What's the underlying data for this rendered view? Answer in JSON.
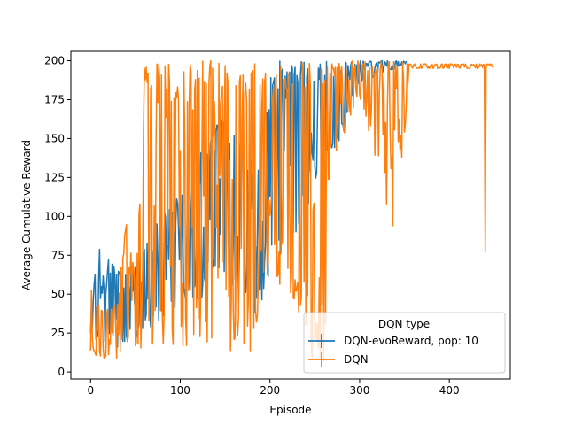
{
  "chart_data": {
    "type": "line",
    "xlabel": "Episode",
    "ylabel": "Average Cumulative Reward",
    "xlim": [
      -22,
      468
    ],
    "ylim": [
      -4.5,
      206
    ],
    "xticks": [
      0,
      100,
      200,
      300,
      400
    ],
    "yticks": [
      0,
      25,
      50,
      75,
      100,
      125,
      150,
      175,
      200
    ],
    "legend": {
      "title": "DQN type",
      "position": "lower-right"
    },
    "series": [
      {
        "name": "DQN-evoReward, pop: 10",
        "color": "#1f77b4",
        "x_end": 352,
        "envelope": [
          {
            "x": 0,
            "lo": 15,
            "hi": 35
          },
          {
            "x": 5,
            "lo": 18,
            "hi": 70
          },
          {
            "x": 8,
            "lo": 20,
            "hi": 105
          },
          {
            "x": 12,
            "lo": 15,
            "hi": 60
          },
          {
            "x": 20,
            "lo": 20,
            "hi": 75
          },
          {
            "x": 30,
            "lo": 15,
            "hi": 65
          },
          {
            "x": 40,
            "lo": 20,
            "hi": 70
          },
          {
            "x": 50,
            "lo": 22,
            "hi": 75
          },
          {
            "x": 60,
            "lo": 25,
            "hi": 80
          },
          {
            "x": 70,
            "lo": 30,
            "hi": 90
          },
          {
            "x": 80,
            "lo": 30,
            "hi": 105
          },
          {
            "x": 90,
            "lo": 35,
            "hi": 110
          },
          {
            "x": 100,
            "lo": 40,
            "hi": 115
          },
          {
            "x": 110,
            "lo": 45,
            "hi": 120
          },
          {
            "x": 120,
            "lo": 45,
            "hi": 140
          },
          {
            "x": 130,
            "lo": 50,
            "hi": 150
          },
          {
            "x": 140,
            "lo": 55,
            "hi": 160
          },
          {
            "x": 150,
            "lo": 60,
            "hi": 165
          },
          {
            "x": 160,
            "lo": 50,
            "hi": 160
          },
          {
            "x": 170,
            "lo": 40,
            "hi": 150
          },
          {
            "x": 180,
            "lo": 30,
            "hi": 140
          },
          {
            "x": 190,
            "lo": 40,
            "hi": 160
          },
          {
            "x": 200,
            "lo": 60,
            "hi": 190
          },
          {
            "x": 210,
            "lo": 70,
            "hi": 200
          },
          {
            "x": 220,
            "lo": 75,
            "hi": 200
          },
          {
            "x": 230,
            "lo": 90,
            "hi": 200
          },
          {
            "x": 240,
            "lo": 100,
            "hi": 200
          },
          {
            "x": 250,
            "lo": 110,
            "hi": 200
          },
          {
            "x": 260,
            "lo": 130,
            "hi": 200
          },
          {
            "x": 270,
            "lo": 140,
            "hi": 200
          },
          {
            "x": 280,
            "lo": 150,
            "hi": 200
          },
          {
            "x": 290,
            "lo": 170,
            "hi": 200
          },
          {
            "x": 300,
            "lo": 185,
            "hi": 200
          },
          {
            "x": 320,
            "lo": 190,
            "hi": 200
          },
          {
            "x": 340,
            "lo": 195,
            "hi": 200
          },
          {
            "x": 352,
            "lo": 198,
            "hi": 200
          }
        ]
      },
      {
        "name": "DQN",
        "color": "#ff7f0e",
        "x_end": 448,
        "envelope": [
          {
            "x": 0,
            "lo": 10,
            "hi": 55
          },
          {
            "x": 10,
            "lo": 8,
            "hi": 45
          },
          {
            "x": 20,
            "lo": 8,
            "hi": 40
          },
          {
            "x": 30,
            "lo": 8,
            "hi": 45
          },
          {
            "x": 40,
            "lo": 8,
            "hi": 105
          },
          {
            "x": 50,
            "lo": 8,
            "hi": 60
          },
          {
            "x": 58,
            "lo": 10,
            "hi": 150
          },
          {
            "x": 60,
            "lo": 10,
            "hi": 200
          },
          {
            "x": 80,
            "lo": 12,
            "hi": 200
          },
          {
            "x": 100,
            "lo": 15,
            "hi": 200
          },
          {
            "x": 120,
            "lo": 18,
            "hi": 200
          },
          {
            "x": 140,
            "lo": 15,
            "hi": 200
          },
          {
            "x": 150,
            "lo": 20,
            "hi": 200
          },
          {
            "x": 155,
            "lo": 8,
            "hi": 200
          },
          {
            "x": 170,
            "lo": 8,
            "hi": 200
          },
          {
            "x": 185,
            "lo": 8,
            "hi": 200
          },
          {
            "x": 190,
            "lo": 60,
            "hi": 200
          },
          {
            "x": 200,
            "lo": 60,
            "hi": 200
          },
          {
            "x": 220,
            "lo": 50,
            "hi": 200
          },
          {
            "x": 235,
            "lo": 30,
            "hi": 200
          },
          {
            "x": 245,
            "lo": 5,
            "hi": 200
          },
          {
            "x": 255,
            "lo": 5,
            "hi": 200
          },
          {
            "x": 262,
            "lo": 5,
            "hi": 200
          },
          {
            "x": 265,
            "lo": 120,
            "hi": 200
          },
          {
            "x": 280,
            "lo": 150,
            "hi": 200
          },
          {
            "x": 300,
            "lo": 175,
            "hi": 200
          },
          {
            "x": 320,
            "lo": 130,
            "hi": 200
          },
          {
            "x": 340,
            "lo": 120,
            "hi": 200
          },
          {
            "x": 350,
            "lo": 145,
            "hi": 200
          },
          {
            "x": 355,
            "lo": 195,
            "hi": 198
          },
          {
            "x": 380,
            "lo": 195,
            "hi": 198
          },
          {
            "x": 400,
            "lo": 195,
            "hi": 198
          },
          {
            "x": 420,
            "lo": 195,
            "hi": 198
          },
          {
            "x": 448,
            "lo": 195,
            "hi": 198
          }
        ],
        "dips": [
          {
            "x": 330,
            "y": 108
          },
          {
            "x": 337,
            "y": 94
          },
          {
            "x": 345,
            "y": 143
          },
          {
            "x": 440,
            "y": 77
          }
        ]
      }
    ]
  }
}
